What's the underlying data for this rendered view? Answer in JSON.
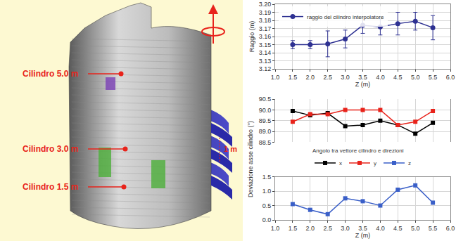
{
  "chart_data": [
    {
      "type": "line",
      "x": [
        1.5,
        2.0,
        2.5,
        3.0,
        3.5,
        4.0,
        4.5,
        5.0,
        5.5
      ],
      "x_label": "Z (m)",
      "y_label": "Raggio (m)",
      "series": [
        {
          "name": "raggio del cilindro interpolatore",
          "color": "#2e3192",
          "marker": "circle",
          "line_style": "solid",
          "values": [
            3.15,
            3.15,
            3.151,
            3.157,
            3.174,
            3.172,
            3.176,
            3.179,
            3.171
          ],
          "errors": [
            0.005,
            0.005,
            0.016,
            0.011,
            0.01,
            0.01,
            0.014,
            0.011,
            0.015
          ]
        }
      ],
      "xlim": [
        1.0,
        6.0
      ],
      "xticks": [
        {
          "value": 1,
          "label": "1.0"
        },
        1.5,
        {
          "value": 2,
          "label": "2.0"
        },
        2.5,
        {
          "value": 3,
          "label": "3.0"
        },
        3.5,
        {
          "value": 4,
          "label": "4.0"
        },
        4.5,
        {
          "value": 5,
          "label": "5.0"
        },
        5.5,
        {
          "value": 6,
          "label": "6.0"
        }
      ],
      "ylim": [
        3.12,
        3.2
      ],
      "yticks": [
        3.12,
        3.13,
        3.14,
        3.15,
        3.16,
        3.17,
        3.18,
        3.19,
        {
          "value": 3.2,
          "label": "3.20"
        }
      ],
      "grid": true,
      "legend": "upper left"
    },
    {
      "type": "line",
      "x": [
        1.5,
        2.0,
        2.5,
        3.0,
        3.5,
        4.0,
        4.5,
        5.0,
        5.5
      ],
      "x_label": "Z (m)",
      "y_label": "Deviazione asse cilindro (°)",
      "legend_title": "Angolo tra vettore cilindro e direzioni",
      "series": [
        {
          "name": "x",
          "color": "#000000",
          "marker": "square",
          "line_style": "solid",
          "axis": "y",
          "values": [
            89.95,
            89.75,
            89.85,
            89.25,
            89.3,
            89.5,
            89.3,
            88.9,
            89.4
          ]
        },
        {
          "name": "y",
          "color": "#e8231b",
          "marker": "square",
          "line_style": "solid",
          "axis": "y",
          "values": [
            89.45,
            89.8,
            89.8,
            90.0,
            90.0,
            90.0,
            89.3,
            89.45,
            89.95
          ]
        },
        {
          "name": "z",
          "color": "#3a5fc8",
          "marker": "square",
          "line_style": "solid",
          "axis": "y2",
          "values": [
            0.55,
            0.35,
            0.2,
            0.75,
            0.65,
            0.5,
            1.05,
            1.2,
            0.6
          ]
        }
      ],
      "xlim": [
        1.0,
        6.0
      ],
      "xticks": [
        {
          "value": 1,
          "label": "1.0"
        },
        1.5,
        {
          "value": 2,
          "label": "2.0"
        },
        2.5,
        {
          "value": 3,
          "label": "3.0"
        },
        3.5,
        {
          "value": 4,
          "label": "4.0"
        },
        4.5,
        {
          "value": 5,
          "label": "5.0"
        },
        5.5,
        {
          "value": 6,
          "label": "6.0"
        }
      ],
      "ylim": [
        88.5,
        90.5
      ],
      "yticks": [
        88.5,
        {
          "value": 89,
          "label": "89.0"
        },
        89.5,
        {
          "value": 90,
          "label": "90.0"
        },
        90.5
      ],
      "y2lim": [
        0,
        1.5
      ],
      "y2ticks": [
        {
          "value": 0,
          "label": "0.0"
        },
        0.5,
        {
          "value": 1,
          "label": "1.0"
        },
        1.5
      ],
      "grid": true,
      "legend": "center"
    }
  ],
  "diagram": {
    "labels": [
      "Cilindro 5.0 m",
      "Cilindro 3.0 m",
      "Cilindro 1.5 m"
    ],
    "dimension": "1 m"
  }
}
